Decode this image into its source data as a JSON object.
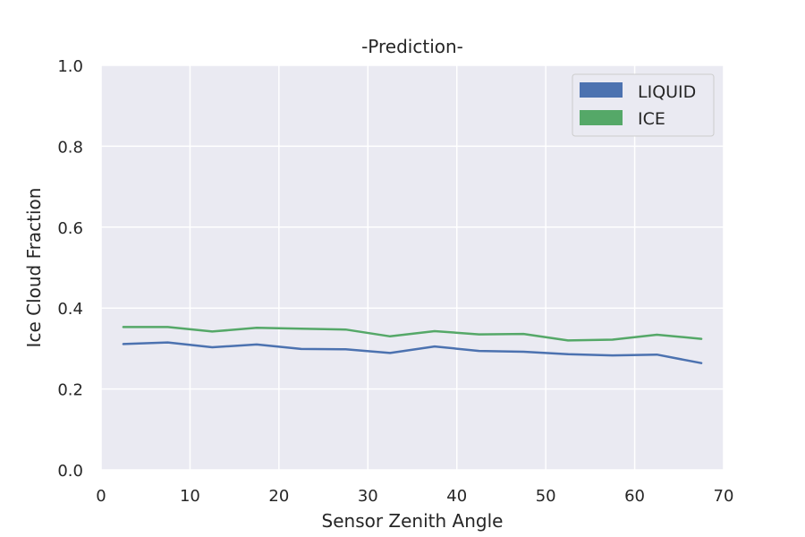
{
  "chart_data": {
    "type": "line",
    "title": "-Prediction-",
    "xlabel": "Sensor Zenith Angle",
    "ylabel": "Ice Cloud Fraction",
    "xlim": [
      0,
      70
    ],
    "ylim": [
      0.0,
      1.0
    ],
    "x_ticks": [
      "0",
      "10",
      "20",
      "30",
      "40",
      "50",
      "60",
      "70"
    ],
    "y_ticks": [
      "0.0",
      "0.2",
      "0.4",
      "0.6",
      "0.8",
      "1.0"
    ],
    "grid": true,
    "legend_position": "top-right",
    "x": [
      2.5,
      7.5,
      12.5,
      17.5,
      22.5,
      27.5,
      32.5,
      37.5,
      42.5,
      47.5,
      52.5,
      57.5,
      62.5,
      67.5
    ],
    "series": [
      {
        "name": "LIQUID",
        "color": "#4c72b0",
        "values": [
          0.311,
          0.315,
          0.303,
          0.31,
          0.299,
          0.298,
          0.289,
          0.305,
          0.294,
          0.292,
          0.286,
          0.283,
          0.285,
          0.264
        ]
      },
      {
        "name": "ICE",
        "color": "#55a868",
        "values": [
          0.353,
          0.353,
          0.342,
          0.351,
          0.349,
          0.347,
          0.33,
          0.343,
          0.335,
          0.336,
          0.32,
          0.322,
          0.334,
          0.324
        ]
      }
    ]
  }
}
